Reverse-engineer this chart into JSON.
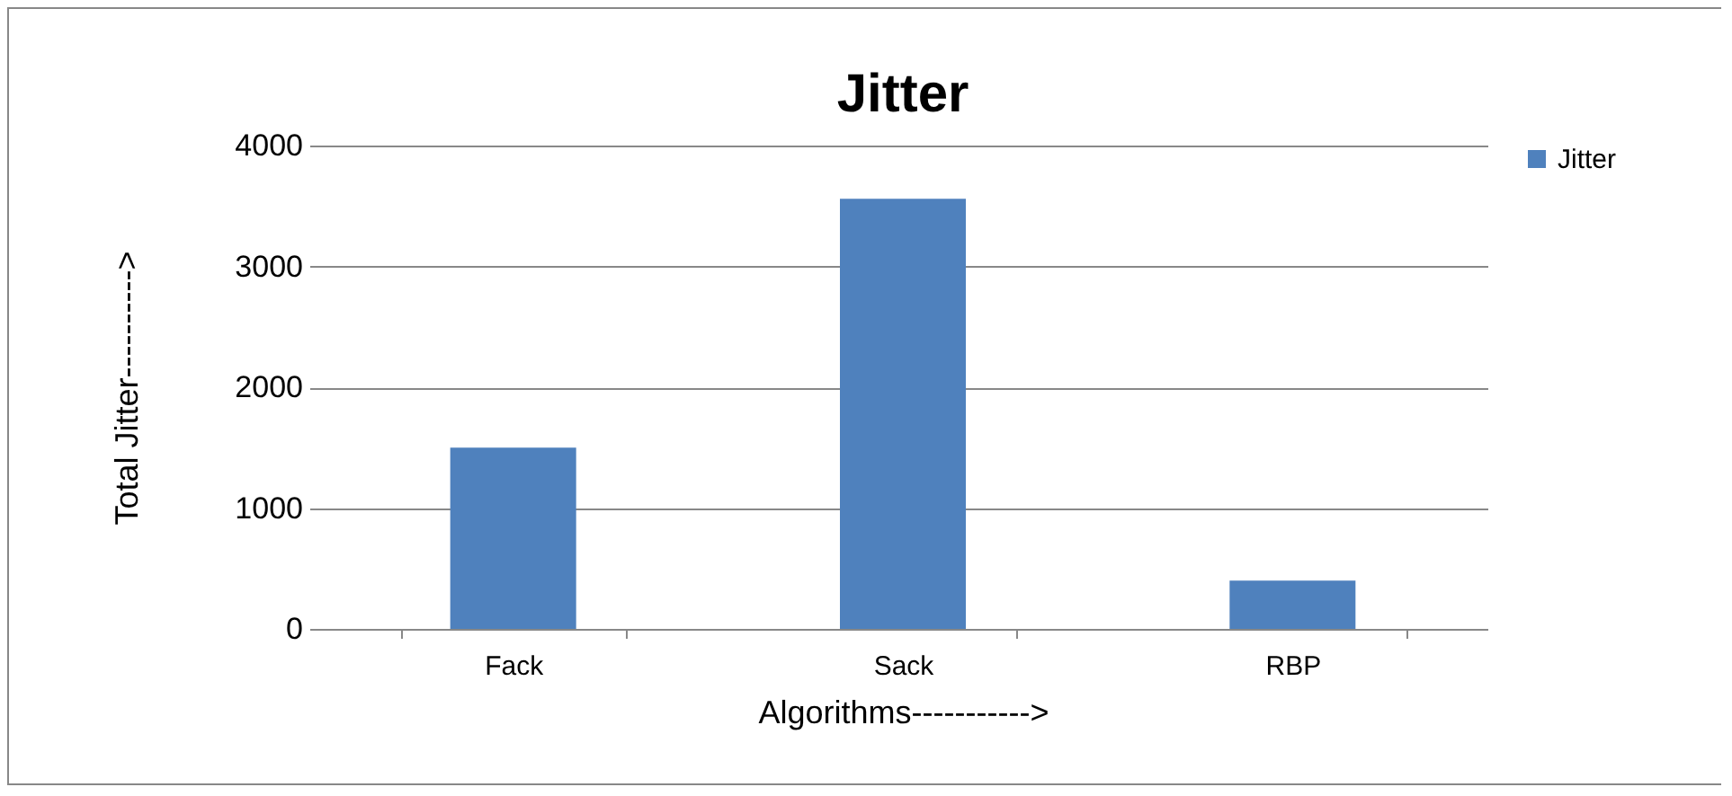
{
  "chart_data": {
    "type": "bar",
    "title": "Jitter",
    "xlabel": "Algorithms----------->",
    "ylabel": "Total Jitter---------->",
    "categories": [
      "Fack",
      "Sack",
      "RBP"
    ],
    "series": [
      {
        "name": "Jitter",
        "color": "#4f81bd",
        "values": [
          1500,
          3560,
          400
        ]
      }
    ],
    "ylim": [
      0,
      4000
    ],
    "yticks": [
      0,
      1000,
      2000,
      3000,
      4000
    ],
    "grid": "y",
    "legend": "right"
  }
}
